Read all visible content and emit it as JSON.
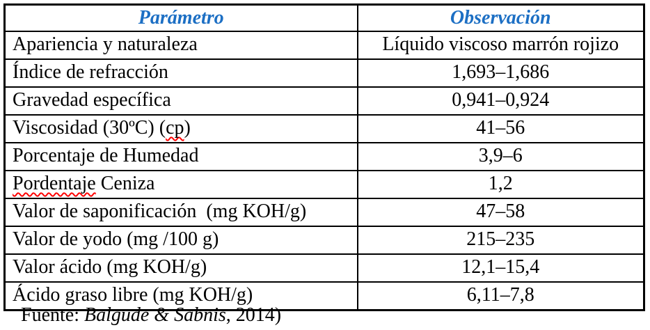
{
  "colors": {
    "header_text": "#1C6FC4",
    "body_text": "#000000",
    "border": "#000000",
    "spellcheck_squiggle": "#FF0000"
  },
  "table": {
    "columns": [
      {
        "label": "Parámetro"
      },
      {
        "label": "Observación"
      }
    ],
    "rows": [
      {
        "parametro": "Apariencia y naturaleza",
        "observacion": "Líquido viscoso marrón rojizo"
      },
      {
        "parametro": "Índice de refracción",
        "observacion": "1,693–1,686"
      },
      {
        "parametro": "Gravedad específica",
        "observacion": "0,941–0,924"
      },
      {
        "parametro": "Viscosidad (30ºC) (cp)",
        "observacion": "41–56",
        "squiggle": "cp"
      },
      {
        "parametro": "Porcentaje de Humedad",
        "observacion": "3,9–6"
      },
      {
        "parametro": "Pordentaje Ceniza",
        "observacion": "1,2",
        "squiggle": "Pordentaje"
      },
      {
        "parametro": "Valor de saponificación  (mg KOH/g)",
        "observacion": "47–58"
      },
      {
        "parametro": "Valor de yodo (mg /100 g)",
        "observacion": "215–235"
      },
      {
        "parametro": "Valor ácido (mg KOH/g)",
        "observacion": "12,1–15,4"
      },
      {
        "parametro": "Ácido graso libre (mg KOH/g)",
        "observacion": "6,11–7,8"
      }
    ]
  },
  "footer": {
    "prefix": "Fuente: ",
    "authors": "Balgude & Sabnis",
    "suffix": ", 2014)"
  }
}
